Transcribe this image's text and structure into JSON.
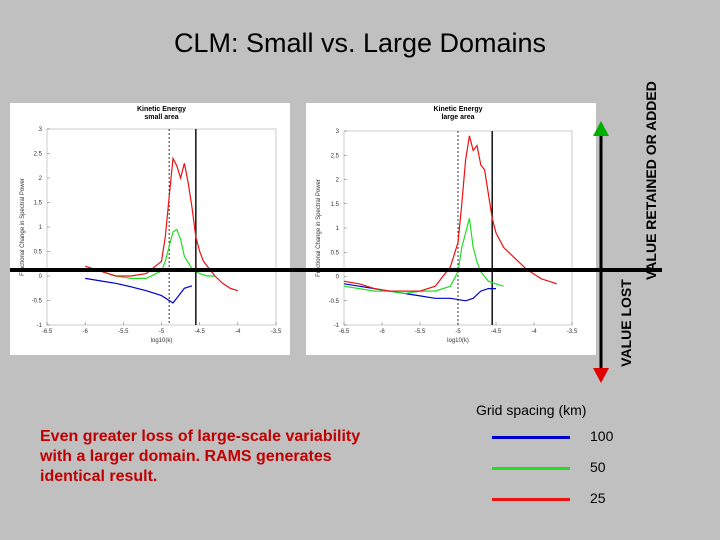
{
  "slide": {
    "title": "CLM: Small vs. Large Domains",
    "retained_label": "VALUE RETAINED OR ADDED",
    "lost_label": "VALUE LOST",
    "note": "Even greater loss of large-scale variability with a larger domain. RAMS generates identical result.",
    "legend": {
      "title": "Grid spacing (km)",
      "items": [
        {
          "label": "100",
          "color": "#0000cc"
        },
        {
          "label": "50",
          "color": "#22dd22"
        },
        {
          "label": "25",
          "color": "#ee1111"
        }
      ]
    }
  },
  "chart_data": [
    {
      "type": "line",
      "title": "Kinetic Energy small area",
      "title_lines": [
        "Kinetic Energy",
        "small area"
      ],
      "xlabel": "log10(k)",
      "ylabel": "Fractional Change in Spectral Power",
      "xlim": [
        -6.5,
        -3.5
      ],
      "ylim": [
        -1,
        3
      ],
      "xticks": [
        "-6.5",
        "-6",
        "-5.5",
        "-5",
        "-4.5",
        "-4",
        "-3.5"
      ],
      "yticks": [
        "-1",
        "-0.5",
        "0",
        "0.5",
        "1",
        "1.5",
        "2",
        "2.5",
        "3"
      ],
      "reference_lines": {
        "dashed": -4.9,
        "solid": -4.55
      },
      "series": [
        {
          "name": "100",
          "color": "#0000cc",
          "x": [
            -6.0,
            -5.8,
            -5.6,
            -5.4,
            -5.2,
            -5.0,
            -4.9,
            -4.85,
            -4.8,
            -4.7,
            -4.6
          ],
          "y": [
            -0.05,
            -0.1,
            -0.15,
            -0.22,
            -0.3,
            -0.4,
            -0.5,
            -0.55,
            -0.45,
            -0.25,
            -0.2
          ]
        },
        {
          "name": "50",
          "color": "#22dd22",
          "x": [
            -6.0,
            -5.8,
            -5.6,
            -5.4,
            -5.2,
            -5.0,
            -4.95,
            -4.9,
            -4.85,
            -4.8,
            -4.75,
            -4.7,
            -4.6,
            -4.5,
            -4.4,
            -4.3
          ],
          "y": [
            0.15,
            0.1,
            0.0,
            -0.05,
            -0.05,
            0.1,
            0.3,
            0.6,
            0.9,
            0.95,
            0.75,
            0.4,
            0.15,
            0.05,
            0.0,
            0.0
          ]
        },
        {
          "name": "25",
          "color": "#ee1111",
          "x": [
            -6.0,
            -5.8,
            -5.6,
            -5.4,
            -5.2,
            -5.0,
            -4.95,
            -4.9,
            -4.85,
            -4.8,
            -4.75,
            -4.7,
            -4.65,
            -4.6,
            -4.55,
            -4.5,
            -4.45,
            -4.4,
            -4.3,
            -4.2,
            -4.1,
            -4.0
          ],
          "y": [
            0.2,
            0.1,
            0.0,
            0.0,
            0.05,
            0.3,
            0.8,
            1.6,
            2.4,
            2.25,
            2.0,
            2.3,
            1.9,
            1.4,
            0.8,
            0.5,
            0.3,
            0.2,
            0.0,
            -0.15,
            -0.25,
            -0.3
          ]
        }
      ]
    },
    {
      "type": "line",
      "title": "Kinetic Energy large area",
      "title_lines": [
        "Kinetic Energy",
        "large area"
      ],
      "xlabel": "log10(k)",
      "ylabel": "Fractional Change in Spectral Power",
      "xlim": [
        -6.5,
        -3.5
      ],
      "ylim": [
        -1,
        3
      ],
      "xticks": [
        "-6.5",
        "-6",
        "-5.5",
        "-5",
        "-4.5",
        "-4",
        "-3.5"
      ],
      "yticks": [
        "-1",
        "-0.5",
        "0",
        "0.5",
        "1",
        "1.5",
        "2",
        "2.5",
        "3"
      ],
      "reference_lines": {
        "dashed": -5.0,
        "solid": -4.55
      },
      "series": [
        {
          "name": "100",
          "color": "#0000cc",
          "x": [
            -6.5,
            -6.3,
            -6.1,
            -5.9,
            -5.7,
            -5.5,
            -5.3,
            -5.1,
            -4.9,
            -4.8,
            -4.7,
            -4.6,
            -4.5
          ],
          "y": [
            -0.15,
            -0.2,
            -0.25,
            -0.3,
            -0.35,
            -0.4,
            -0.45,
            -0.45,
            -0.5,
            -0.45,
            -0.3,
            -0.25,
            -0.25
          ]
        },
        {
          "name": "50",
          "color": "#22dd22",
          "x": [
            -6.5,
            -6.3,
            -6.1,
            -5.9,
            -5.7,
            -5.5,
            -5.3,
            -5.1,
            -5.0,
            -4.95,
            -4.9,
            -4.85,
            -4.8,
            -4.75,
            -4.7,
            -4.65,
            -4.6,
            -4.5,
            -4.4
          ],
          "y": [
            -0.2,
            -0.25,
            -0.3,
            -0.3,
            -0.35,
            -0.3,
            -0.3,
            -0.2,
            0.1,
            0.6,
            0.9,
            1.2,
            0.6,
            0.3,
            0.1,
            0.0,
            -0.1,
            -0.15,
            -0.2
          ]
        },
        {
          "name": "25",
          "color": "#ee1111",
          "x": [
            -6.5,
            -6.3,
            -6.1,
            -5.9,
            -5.7,
            -5.5,
            -5.3,
            -5.1,
            -5.0,
            -4.95,
            -4.9,
            -4.85,
            -4.8,
            -4.75,
            -4.7,
            -4.65,
            -4.6,
            -4.55,
            -4.5,
            -4.4,
            -4.3,
            -4.2,
            -4.1,
            -4.0,
            -3.9,
            -3.8,
            -3.7
          ],
          "y": [
            -0.1,
            -0.15,
            -0.25,
            -0.3,
            -0.3,
            -0.3,
            -0.2,
            0.2,
            0.7,
            1.5,
            2.4,
            2.9,
            2.6,
            2.7,
            2.3,
            2.2,
            1.7,
            1.2,
            0.9,
            0.6,
            0.45,
            0.3,
            0.15,
            0.05,
            -0.05,
            -0.1,
            -0.15
          ]
        }
      ]
    }
  ]
}
